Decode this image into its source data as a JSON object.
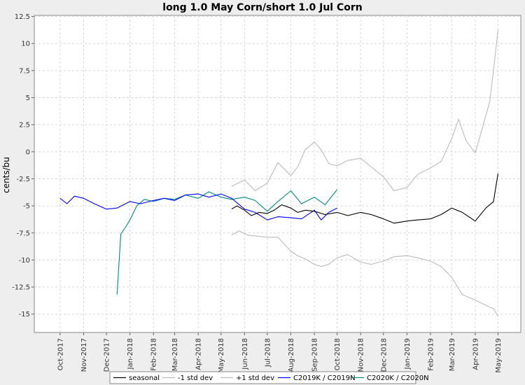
{
  "chart_data": {
    "type": "line",
    "title": "long 1.0 May Corn/short 1.0 Jul Corn",
    "xlabel": "",
    "ylabel": "cents/bu",
    "ylim": [
      -16.7,
      12.6
    ],
    "yticks": [
      12.5,
      10,
      7.5,
      5,
      2.5,
      0,
      -2.5,
      -5,
      -7.5,
      -10,
      -12.5,
      -15
    ],
    "ytick_labels": [
      "12.5",
      "10",
      "7.5",
      "5",
      "2.5",
      "0",
      "-2.5",
      "-5",
      "-7.5",
      "-10",
      "-12.5",
      "-15"
    ],
    "x_start": "2017-08-28",
    "x_end": "2019-05-31",
    "xticks": [
      "2017-10-01",
      "2017-11-01",
      "2017-12-01",
      "2018-01-01",
      "2018-02-01",
      "2018-03-01",
      "2018-04-01",
      "2018-05-01",
      "2018-06-01",
      "2018-07-01",
      "2018-08-01",
      "2018-09-01",
      "2018-10-01",
      "2018-11-01",
      "2018-12-01",
      "2019-01-01",
      "2019-02-01",
      "2019-03-01",
      "2019-04-01",
      "2019-05-01"
    ],
    "xtick_labels": [
      "Oct-2017",
      "Nov-2017",
      "Dec-2017",
      "Jan-2018",
      "Feb-2018",
      "Mar-2018",
      "Apr-2018",
      "May-2018",
      "Jun-2018",
      "Jul-2018",
      "Aug-2018",
      "Sep-2018",
      "Oct-2018",
      "Nov-2018",
      "Dec-2018",
      "Jan-2019",
      "Feb-2019",
      "Mar-2019",
      "Apr-2019",
      "May-2019"
    ],
    "grid": true,
    "legend_position": "bottom",
    "series": [
      {
        "name": "seasonal",
        "color": "#000000",
        "points": [
          [
            "2018-05-15",
            -5.3
          ],
          [
            "2018-05-22",
            -5.0
          ],
          [
            "2018-06-01",
            -5.4
          ],
          [
            "2018-06-10",
            -5.9
          ],
          [
            "2018-06-20",
            -5.6
          ],
          [
            "2018-07-01",
            -5.7
          ],
          [
            "2018-07-10",
            -5.4
          ],
          [
            "2018-07-20",
            -4.9
          ],
          [
            "2018-08-01",
            -5.2
          ],
          [
            "2018-08-10",
            -5.6
          ],
          [
            "2018-08-20",
            -5.4
          ],
          [
            "2018-09-01",
            -5.5
          ],
          [
            "2018-09-15",
            -5.8
          ],
          [
            "2018-10-01",
            -5.6
          ],
          [
            "2018-10-15",
            -5.9
          ],
          [
            "2018-11-01",
            -5.6
          ],
          [
            "2018-11-15",
            -5.8
          ],
          [
            "2018-12-01",
            -6.2
          ],
          [
            "2018-12-15",
            -6.6
          ],
          [
            "2019-01-01",
            -6.4
          ],
          [
            "2019-01-15",
            -6.3
          ],
          [
            "2019-02-01",
            -6.2
          ],
          [
            "2019-02-15",
            -5.8
          ],
          [
            "2019-03-01",
            -5.2
          ],
          [
            "2019-03-15",
            -5.6
          ],
          [
            "2019-04-01",
            -6.4
          ],
          [
            "2019-04-15",
            -5.2
          ],
          [
            "2019-04-25",
            -4.6
          ],
          [
            "2019-05-01",
            -2.0
          ]
        ]
      },
      {
        "name": "-1 std dev",
        "color": "#bbbbbb",
        "points": [
          [
            "2018-05-15",
            -7.7
          ],
          [
            "2018-05-25",
            -7.3
          ],
          [
            "2018-06-05",
            -7.7
          ],
          [
            "2018-06-20",
            -7.8
          ],
          [
            "2018-07-01",
            -7.9
          ],
          [
            "2018-07-15",
            -7.9
          ],
          [
            "2018-08-01",
            -9.2
          ],
          [
            "2018-08-10",
            -9.6
          ],
          [
            "2018-08-20",
            -9.9
          ],
          [
            "2018-09-01",
            -10.4
          ],
          [
            "2018-09-10",
            -10.6
          ],
          [
            "2018-09-20",
            -10.4
          ],
          [
            "2018-10-01",
            -9.8
          ],
          [
            "2018-10-15",
            -9.5
          ],
          [
            "2018-11-01",
            -10.2
          ],
          [
            "2018-11-15",
            -10.4
          ],
          [
            "2018-12-01",
            -10.1
          ],
          [
            "2018-12-15",
            -9.7
          ],
          [
            "2019-01-01",
            -9.6
          ],
          [
            "2019-01-15",
            -9.8
          ],
          [
            "2019-02-01",
            -10.1
          ],
          [
            "2019-02-15",
            -10.6
          ],
          [
            "2019-03-01",
            -11.6
          ],
          [
            "2019-03-15",
            -13.2
          ],
          [
            "2019-04-01",
            -13.7
          ],
          [
            "2019-04-15",
            -14.2
          ],
          [
            "2019-04-25",
            -14.5
          ],
          [
            "2019-05-01",
            -15.2
          ]
        ]
      },
      {
        "name": "+1 std dev",
        "color": "#bbbbbb",
        "points": [
          [
            "2018-05-15",
            -3.2
          ],
          [
            "2018-06-01",
            -2.6
          ],
          [
            "2018-06-15",
            -3.6
          ],
          [
            "2018-07-01",
            -2.9
          ],
          [
            "2018-07-15",
            -1.0
          ],
          [
            "2018-08-01",
            -2.2
          ],
          [
            "2018-08-10",
            -1.4
          ],
          [
            "2018-08-20",
            0.2
          ],
          [
            "2018-09-01",
            0.9
          ],
          [
            "2018-09-10",
            0.2
          ],
          [
            "2018-09-20",
            -1.1
          ],
          [
            "2018-10-01",
            -1.3
          ],
          [
            "2018-10-15",
            -0.8
          ],
          [
            "2018-11-01",
            -0.6
          ],
          [
            "2018-11-15",
            -1.4
          ],
          [
            "2018-12-01",
            -2.3
          ],
          [
            "2018-12-15",
            -3.6
          ],
          [
            "2019-01-01",
            -3.3
          ],
          [
            "2019-01-15",
            -2.1
          ],
          [
            "2019-02-01",
            -1.5
          ],
          [
            "2019-02-15",
            -0.9
          ],
          [
            "2019-03-01",
            1.2
          ],
          [
            "2019-03-10",
            3.0
          ],
          [
            "2019-03-20",
            1.0
          ],
          [
            "2019-04-01",
            -0.1
          ],
          [
            "2019-04-10",
            2.1
          ],
          [
            "2019-04-20",
            4.6
          ],
          [
            "2019-04-25",
            7.5
          ],
          [
            "2019-05-01",
            11.3
          ]
        ]
      },
      {
        "name": "C2019K / C2019N",
        "color": "#0000ff",
        "points": [
          [
            "2017-10-01",
            -4.3
          ],
          [
            "2017-10-10",
            -4.8
          ],
          [
            "2017-10-20",
            -4.1
          ],
          [
            "2017-11-01",
            -4.3
          ],
          [
            "2017-11-15",
            -4.8
          ],
          [
            "2017-12-01",
            -5.3
          ],
          [
            "2017-12-15",
            -5.2
          ],
          [
            "2018-01-01",
            -4.6
          ],
          [
            "2018-01-15",
            -4.8
          ],
          [
            "2018-02-01",
            -4.5
          ],
          [
            "2018-02-15",
            -4.3
          ],
          [
            "2018-03-01",
            -4.5
          ],
          [
            "2018-03-15",
            -4.0
          ],
          [
            "2018-04-01",
            -3.9
          ],
          [
            "2018-04-15",
            -4.2
          ],
          [
            "2018-05-01",
            -3.9
          ],
          [
            "2018-05-15",
            -4.3
          ],
          [
            "2018-06-01",
            -5.3
          ],
          [
            "2018-06-15",
            -5.6
          ],
          [
            "2018-07-01",
            -6.3
          ],
          [
            "2018-07-15",
            -6.0
          ],
          [
            "2018-08-01",
            -6.1
          ],
          [
            "2018-08-15",
            -6.2
          ],
          [
            "2018-09-01",
            -5.4
          ],
          [
            "2018-09-10",
            -6.3
          ],
          [
            "2018-09-20",
            -5.6
          ],
          [
            "2018-10-01",
            -5.2
          ]
        ]
      },
      {
        "name": "C2020K / C2020N",
        "color": "#008b80",
        "points": [
          [
            "2017-12-15",
            -13.2
          ],
          [
            "2017-12-20",
            -7.6
          ],
          [
            "2017-12-25",
            -7.1
          ],
          [
            "2018-01-01",
            -6.3
          ],
          [
            "2018-01-10",
            -5.0
          ],
          [
            "2018-01-20",
            -4.4
          ],
          [
            "2018-02-01",
            -4.6
          ],
          [
            "2018-02-15",
            -4.3
          ],
          [
            "2018-03-01",
            -4.4
          ],
          [
            "2018-03-15",
            -4.0
          ],
          [
            "2018-04-01",
            -4.3
          ],
          [
            "2018-04-15",
            -3.7
          ],
          [
            "2018-05-01",
            -4.2
          ],
          [
            "2018-05-15",
            -4.4
          ],
          [
            "2018-06-01",
            -4.2
          ],
          [
            "2018-06-15",
            -4.5
          ],
          [
            "2018-07-01",
            -5.5
          ],
          [
            "2018-07-15",
            -4.6
          ],
          [
            "2018-08-01",
            -3.6
          ],
          [
            "2018-08-15",
            -4.8
          ],
          [
            "2018-09-01",
            -4.2
          ],
          [
            "2018-09-15",
            -4.9
          ],
          [
            "2018-10-01",
            -3.5
          ]
        ]
      }
    ]
  }
}
